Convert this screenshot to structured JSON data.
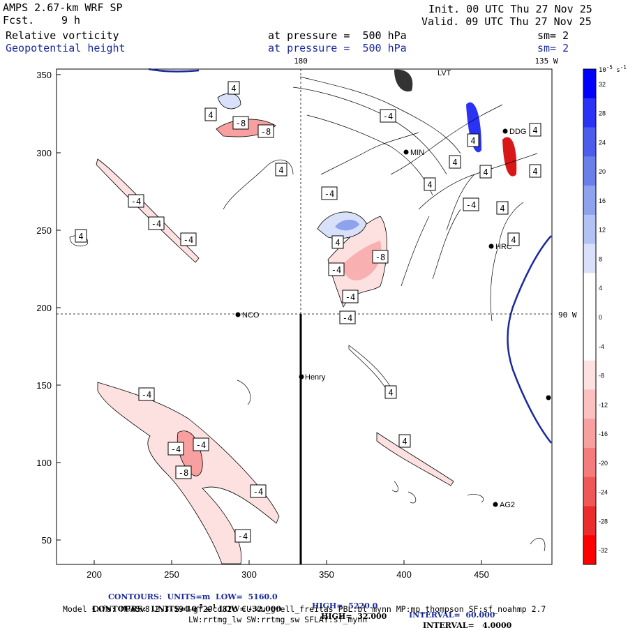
{
  "header": {
    "model": "AMPS 2.67-km WRF SP",
    "fcst_label": "Fcst.",
    "fcst_value": "9 h",
    "field1": "Relative vorticity",
    "field2": "Geopotential height",
    "at1": "at pressure =  500 hPa",
    "at2": "at pressure =  500 hPa",
    "init": "Init. 00 UTC Thu 27 Nov 25",
    "valid": "Valid. 09 UTC Thu 27 Nov 25",
    "sm1": "sm= 2",
    "sm2": "sm= 2"
  },
  "map": {
    "meridian_180": "180",
    "meridian_135w": "135 W",
    "meridian_90w": "90 W",
    "x_ticks": [
      "200",
      "250",
      "300",
      "350",
      "400",
      "450"
    ],
    "y_ticks": [
      "350",
      "300",
      "250",
      "200",
      "150",
      "100",
      "50"
    ],
    "stations": [
      {
        "name": "NCO"
      },
      {
        "name": "Henry"
      },
      {
        "name": "MIN"
      },
      {
        "name": "LVT"
      },
      {
        "name": "DDG"
      },
      {
        "name": "HRC"
      },
      {
        "name": "AG2"
      }
    ],
    "contour_labels": [
      "4",
      "-8",
      "-8",
      "4",
      "4",
      "-4",
      "-4",
      "-4",
      "4",
      "4",
      "-4",
      "-8",
      "-4",
      "-4",
      "-4",
      "4",
      "-4",
      "4",
      "4",
      "4",
      "4",
      "4",
      "-4",
      "4",
      "-4",
      "-4",
      "-8",
      "-4",
      "-4",
      "-4",
      "4",
      "4",
      "4"
    ]
  },
  "colorbar": {
    "unit_label": "10",
    "unit_exp": "-5",
    "unit_suffix": "s",
    "unit_suffix_exp": "-1",
    "ticks": [
      "32",
      "28",
      "24",
      "20",
      "16",
      "12",
      "8",
      "4",
      "0",
      "-4",
      "-8",
      "-12",
      "-16",
      "-20",
      "-24",
      "-28",
      "-32"
    ],
    "colors": [
      "#0000ff",
      "#2a32f5",
      "#4c5cec",
      "#6a80e8",
      "#8ea2ee",
      "#b3c2f4",
      "#d8e0fa",
      "#ffffff",
      "#ffffff",
      "#ffffff",
      "#fde0e0",
      "#fbc0c0",
      "#f8a0a0",
      "#f47c7c",
      "#f05858",
      "#ec2c2c",
      "#ff0000"
    ]
  },
  "footer": {
    "line1_a": "CONTOURS:  UNITS=m  LOW=  5160.0",
    "line1_b": "HIGH=  5220.0",
    "line1_c": "INTERVAL=  60.000",
    "line2_a": "CONTOURS:  UNITS=10",
    "line2_exp": "-5",
    "line2_b": "s",
    "line2_exp2": "-1",
    "line2_c": " LOW= -32.000",
    "line2_d": "HIGH=  32.000",
    "line2_e": "INTERVAL=   4.0000",
    "model_info": "Model Info: MPASv8.2.3-194-gf29cd82c CU:cu_grell_freitas PBL:bl_mynn MP:mp_thompson SF:sf_noahmp 2.7",
    "model_info2": "LW:rrtmg_lw SW:rrtmg_sw SFLAY:sf_mynn"
  }
}
